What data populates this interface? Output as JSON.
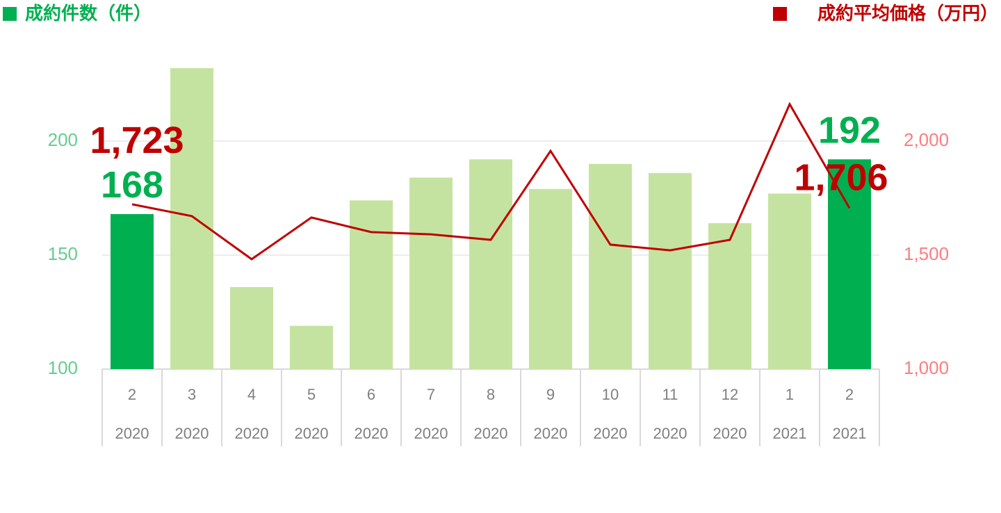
{
  "chart_data": {
    "type": "bar-line",
    "categories": [
      "2",
      "3",
      "4",
      "5",
      "6",
      "7",
      "8",
      "9",
      "10",
      "11",
      "12",
      "1",
      "2"
    ],
    "years": [
      "2020",
      "2020",
      "2020",
      "2020",
      "2020",
      "2020",
      "2020",
      "2020",
      "2020",
      "2020",
      "2020",
      "2021",
      "2021"
    ],
    "series": [
      {
        "name": "成約件数（件）",
        "type": "bar",
        "color": "#00b050",
        "colors": [
          "#00b050",
          "#c5e3a0",
          "#c5e3a0",
          "#c5e3a0",
          "#c5e3a0",
          "#c5e3a0",
          "#c5e3a0",
          "#c5e3a0",
          "#c5e3a0",
          "#c5e3a0",
          "#c5e3a0",
          "#c5e3a0",
          "#00b050"
        ],
        "values": [
          168,
          232,
          136,
          119,
          174,
          184,
          192,
          179,
          190,
          186,
          164,
          177,
          192
        ],
        "value_labels": [
          "168",
          null,
          null,
          null,
          null,
          null,
          null,
          null,
          null,
          null,
          null,
          null,
          "192"
        ]
      },
      {
        "name": "成約平均価格（万円）",
        "type": "line",
        "axis": "y2",
        "color": "#c00000",
        "values": [
          1723,
          1671,
          1482,
          1665,
          1601,
          1591,
          1567,
          1957,
          1546,
          1521,
          1567,
          2162,
          1706
        ],
        "value_labels": [
          "1,723",
          null,
          null,
          null,
          null,
          null,
          null,
          null,
          null,
          null,
          null,
          null,
          "1,706"
        ]
      }
    ],
    "ylim": [
      100,
      250
    ],
    "yticks": [
      100,
      150,
      200
    ],
    "y2lim": [
      1000,
      2500
    ],
    "y2ticks": [
      {
        "value": 1000,
        "label": "1,000"
      },
      {
        "value": 1500,
        "label": "1,500"
      },
      {
        "value": 2000,
        "label": "2,000"
      }
    ],
    "grid": true
  }
}
